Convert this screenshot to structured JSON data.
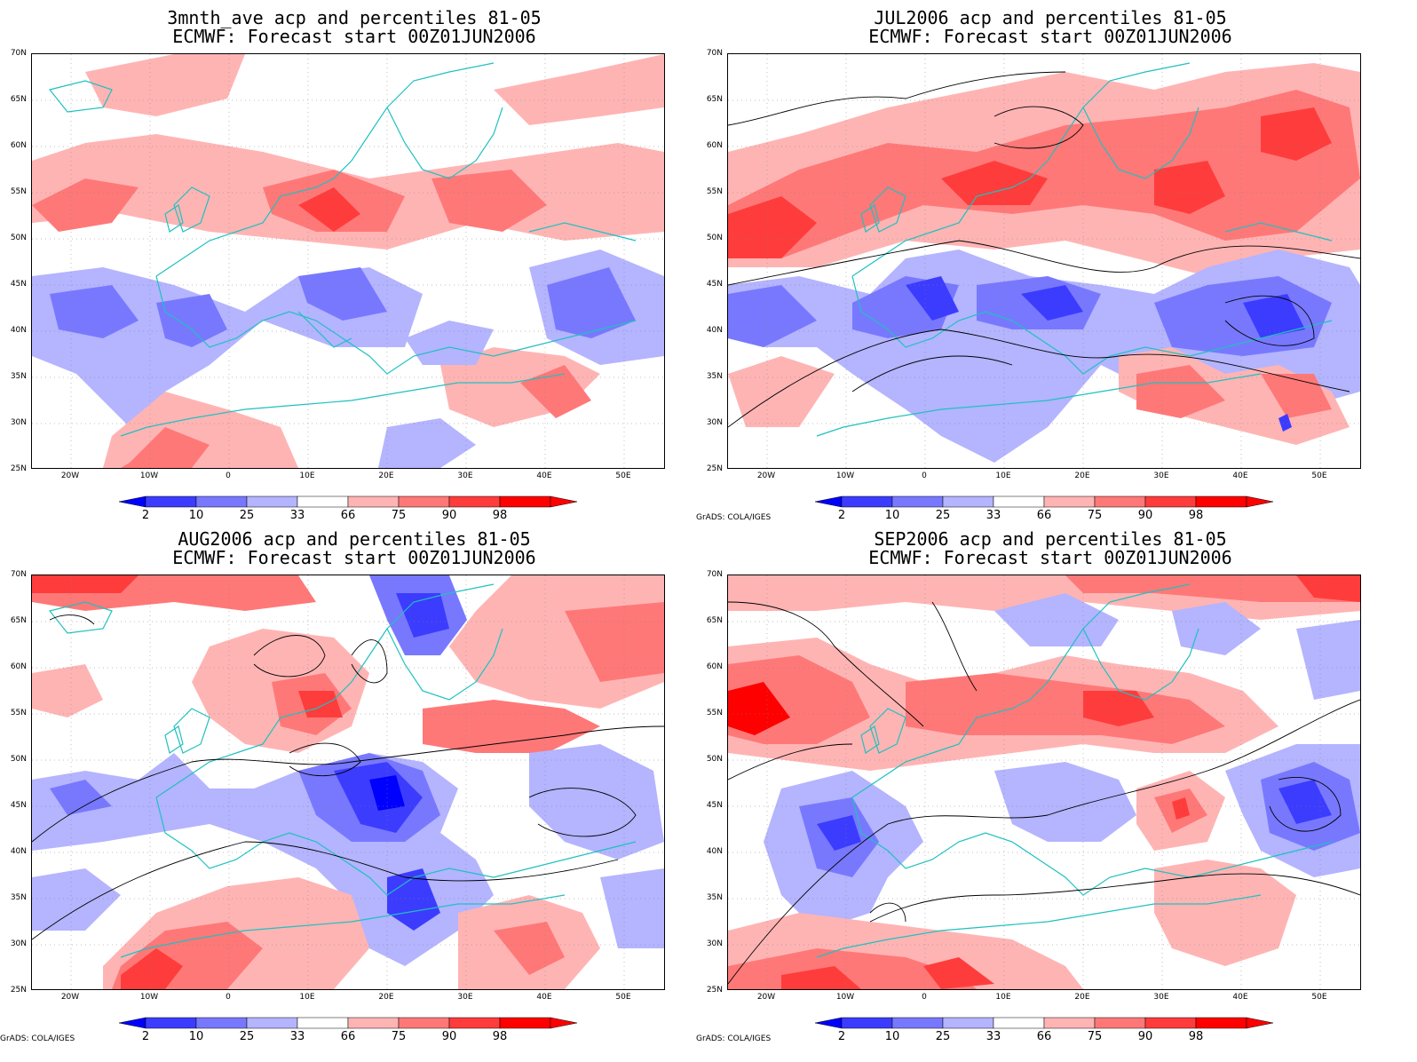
{
  "panels": [
    {
      "id": "p1",
      "title_line1": "3mnth_ave acp and percentiles 81-05",
      "title_line2": "ECMWF: Forecast start 00Z01JUN2006",
      "credit": ""
    },
    {
      "id": "p2",
      "title_line1": "JUL2006 acp and percentiles 81-05",
      "title_line2": "ECMWF: Forecast start 00Z01JUN2006",
      "credit": "GrADS: COLA/IGES"
    },
    {
      "id": "p3",
      "title_line1": "AUG2006 acp and percentiles 81-05",
      "title_line2": "ECMWF: Forecast start 00Z01JUN2006",
      "credit": "GrADS: COLA/IGES"
    },
    {
      "id": "p4",
      "title_line1": "SEP2006 acp and percentiles 81-05",
      "title_line2": "ECMWF: Forecast start 00Z01JUN2006",
      "credit": "GrADS: COLA/IGES"
    }
  ],
  "axes": {
    "lat_labels": [
      "70N",
      "65N",
      "60N",
      "55N",
      "50N",
      "45N",
      "40N",
      "35N",
      "30N",
      "25N"
    ],
    "lon_labels": [
      "20W",
      "10W",
      "0",
      "10E",
      "20E",
      "30E",
      "40E",
      "50E"
    ]
  },
  "colorbar": {
    "labels": [
      "2",
      "10",
      "25",
      "33",
      "66",
      "75",
      "90",
      "98"
    ],
    "colors": [
      "#0000ff",
      "#3c3cff",
      "#7878ff",
      "#b4b4ff",
      "#ffffff",
      "#ffb4b4",
      "#ff7878",
      "#ff3c3c",
      "#ff0000"
    ]
  },
  "colors": {
    "coast": "#20c0c0",
    "contour": "#000000",
    "grid": "#808080"
  }
}
